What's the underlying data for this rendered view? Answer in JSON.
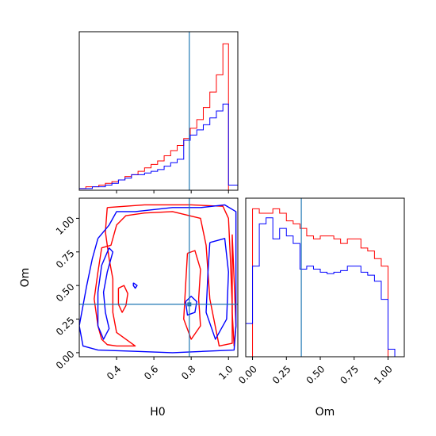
{
  "chart_data": {
    "type": "corner",
    "parameters": [
      "H0",
      "Om"
    ],
    "truths": {
      "H0": 0.79,
      "Om": 0.36
    },
    "colors": {
      "run_a": "#ff0000",
      "run_b": "#0000ff",
      "truth": "#1f77b4"
    },
    "panels": [
      {
        "id": "hist-H0",
        "type": "histogram",
        "xlim": [
          0.2,
          1.05
        ],
        "xticks": [
          "0.4",
          "0.6",
          "0.8",
          "1.0"
        ],
        "xtick_values": [
          0.4,
          0.6,
          0.8,
          1.0
        ],
        "show_tick_labels": false,
        "bin_edges": [
          0.2,
          0.235,
          0.27,
          0.305,
          0.34,
          0.375,
          0.41,
          0.445,
          0.48,
          0.515,
          0.55,
          0.585,
          0.62,
          0.655,
          0.69,
          0.725,
          0.76,
          0.795,
          0.83,
          0.865,
          0.9,
          0.935,
          0.97,
          1.0,
          1.05
        ],
        "series": [
          {
            "color_key": "run_a",
            "values": [
              1,
              2,
              2,
              3,
              4,
              5,
              6,
              8,
              9,
              11,
              13,
              15,
              17,
              20,
              23,
              26,
              30,
              36,
              41,
              48,
              57,
              67,
              85,
              0
            ]
          },
          {
            "color_key": "run_b",
            "values": [
              1,
              1,
              2,
              2,
              3,
              4,
              6,
              7,
              9,
              9,
              10,
              11,
              12,
              14,
              16,
              18,
              29,
              32,
              35,
              38,
              42,
              46,
              50,
              3
            ]
          }
        ],
        "ylim": [
          0,
          92
        ]
      },
      {
        "id": "contour-H0-Om",
        "type": "contour",
        "xlim": [
          0.2,
          1.05
        ],
        "ylim": [
          -0.03,
          1.15
        ],
        "xticks": [
          "0.4",
          "0.6",
          "0.8",
          "1.0"
        ],
        "xtick_values": [
          0.4,
          0.6,
          0.8,
          1.0
        ],
        "yticks": [
          "0.00",
          "0.25",
          "0.50",
          "0.75",
          "1.00"
        ],
        "ytick_values": [
          0.0,
          0.25,
          0.5,
          0.75,
          1.0
        ],
        "xlabel": "H0",
        "ylabel": "Om",
        "contours": [
          {
            "color_key": "run_a",
            "points": [
              [
                0.35,
                1.08
              ],
              [
                0.55,
                1.1
              ],
              [
                0.8,
                1.1
              ],
              [
                0.97,
                1.09
              ],
              [
                1.0,
                1.0
              ],
              [
                1.01,
                0.7
              ],
              [
                1.02,
                0.35
              ],
              [
                1.02,
                0.07
              ],
              [
                0.95,
                0.05
              ],
              [
                0.9,
                0.4
              ],
              [
                0.88,
                0.8
              ],
              [
                0.85,
                1.0
              ],
              [
                0.7,
                1.05
              ],
              [
                0.55,
                1.04
              ],
              [
                0.45,
                1.02
              ],
              [
                0.4,
                0.95
              ],
              [
                0.37,
                0.8
              ],
              [
                0.32,
                0.78
              ],
              [
                0.3,
                0.6
              ],
              [
                0.28,
                0.4
              ],
              [
                0.3,
                0.2
              ],
              [
                0.32,
                0.1
              ],
              [
                0.35,
                0.06
              ],
              [
                0.4,
                0.05
              ],
              [
                0.5,
                0.05
              ],
              [
                0.45,
                0.1
              ],
              [
                0.4,
                0.15
              ],
              [
                0.38,
                0.3
              ],
              [
                0.38,
                0.55
              ],
              [
                0.36,
                0.7
              ],
              [
                0.34,
                0.9
              ],
              [
                0.35,
                1.08
              ]
            ]
          },
          {
            "color_key": "run_a",
            "points": [
              [
                0.41,
                0.48
              ],
              [
                0.44,
                0.5
              ],
              [
                0.46,
                0.44
              ],
              [
                0.45,
                0.35
              ],
              [
                0.43,
                0.3
              ],
              [
                0.41,
                0.36
              ],
              [
                0.41,
                0.48
              ]
            ]
          },
          {
            "color_key": "run_a",
            "points": [
              [
                0.78,
                0.74
              ],
              [
                0.82,
                0.76
              ],
              [
                0.85,
                0.62
              ],
              [
                0.84,
                0.4
              ],
              [
                0.85,
                0.2
              ],
              [
                0.8,
                0.1
              ],
              [
                0.76,
                0.25
              ],
              [
                0.77,
                0.5
              ],
              [
                0.78,
                0.74
              ]
            ]
          },
          {
            "color_key": "run_a",
            "points": [
              [
                1.02,
                0.88
              ],
              [
                1.03,
                0.55
              ],
              [
                1.04,
                0.2
              ],
              [
                1.03,
                0.05
              ],
              [
                1.02,
                0.3
              ],
              [
                1.02,
                0.88
              ]
            ]
          },
          {
            "color_key": "run_b",
            "points": [
              [
                0.3,
                0.85
              ],
              [
                0.36,
                0.95
              ],
              [
                0.4,
                1.05
              ],
              [
                0.5,
                1.05
              ],
              [
                0.7,
                1.08
              ],
              [
                0.85,
                1.08
              ],
              [
                0.98,
                1.1
              ],
              [
                1.04,
                1.05
              ],
              [
                1.04,
                0.6
              ],
              [
                1.04,
                0.2
              ],
              [
                1.03,
                0.02
              ],
              [
                0.7,
                0.0
              ],
              [
                0.5,
                0.01
              ],
              [
                0.3,
                0.02
              ],
              [
                0.22,
                0.05
              ],
              [
                0.2,
                0.2
              ],
              [
                0.24,
                0.5
              ],
              [
                0.27,
                0.7
              ],
              [
                0.3,
                0.85
              ]
            ]
          },
          {
            "color_key": "run_b",
            "points": [
              [
                0.36,
                0.78
              ],
              [
                0.38,
                0.75
              ],
              [
                0.35,
                0.6
              ],
              [
                0.33,
                0.45
              ],
              [
                0.34,
                0.3
              ],
              [
                0.36,
                0.18
              ],
              [
                0.33,
                0.1
              ],
              [
                0.3,
                0.2
              ],
              [
                0.3,
                0.45
              ],
              [
                0.32,
                0.65
              ],
              [
                0.36,
                0.78
              ]
            ]
          },
          {
            "color_key": "run_b",
            "points": [
              [
                0.77,
                0.38
              ],
              [
                0.8,
                0.42
              ],
              [
                0.83,
                0.38
              ],
              [
                0.82,
                0.3
              ],
              [
                0.78,
                0.28
              ],
              [
                0.77,
                0.38
              ]
            ]
          },
          {
            "color_key": "run_b",
            "points": [
              [
                0.9,
                0.82
              ],
              [
                0.98,
                0.85
              ],
              [
                1.0,
                0.6
              ],
              [
                0.99,
                0.25
              ],
              [
                0.93,
                0.1
              ],
              [
                0.88,
                0.3
              ],
              [
                0.89,
                0.6
              ],
              [
                0.9,
                0.82
              ]
            ]
          },
          {
            "color_key": "run_b",
            "points": [
              [
                0.49,
                0.52
              ],
              [
                0.51,
                0.5
              ],
              [
                0.5,
                0.48
              ],
              [
                0.49,
                0.5
              ],
              [
                0.49,
                0.52
              ]
            ]
          }
        ]
      },
      {
        "id": "hist-Om",
        "type": "histogram",
        "xlim": [
          -0.05,
          1.12
        ],
        "xticks": [
          "0.00",
          "0.25",
          "0.50",
          "0.75",
          "1.00"
        ],
        "xtick_values": [
          0.0,
          0.25,
          0.5,
          0.75,
          1.0
        ],
        "xlabel": "Om",
        "bin_edges": [
          -0.05,
          0.0,
          0.05,
          0.1,
          0.15,
          0.2,
          0.25,
          0.3,
          0.35,
          0.4,
          0.45,
          0.5,
          0.55,
          0.6,
          0.65,
          0.7,
          0.75,
          0.8,
          0.85,
          0.9,
          0.95,
          1.0,
          1.05,
          1.12
        ],
        "series": [
          {
            "color_key": "run_a",
            "values": [
              0,
              98,
              95,
              95,
              98,
              95,
              90,
              88,
              85,
              80,
              78,
              80,
              80,
              78,
              75,
              78,
              78,
              72,
              70,
              65,
              60,
              0,
              0
            ]
          },
          {
            "color_key": "run_b",
            "values": [
              22,
              60,
              88,
              92,
              78,
              85,
              80,
              75,
              58,
              60,
              58,
              56,
              55,
              56,
              57,
              60,
              60,
              56,
              54,
              50,
              38,
              5,
              0
            ]
          }
        ],
        "ylim": [
          0,
          105
        ]
      }
    ]
  }
}
